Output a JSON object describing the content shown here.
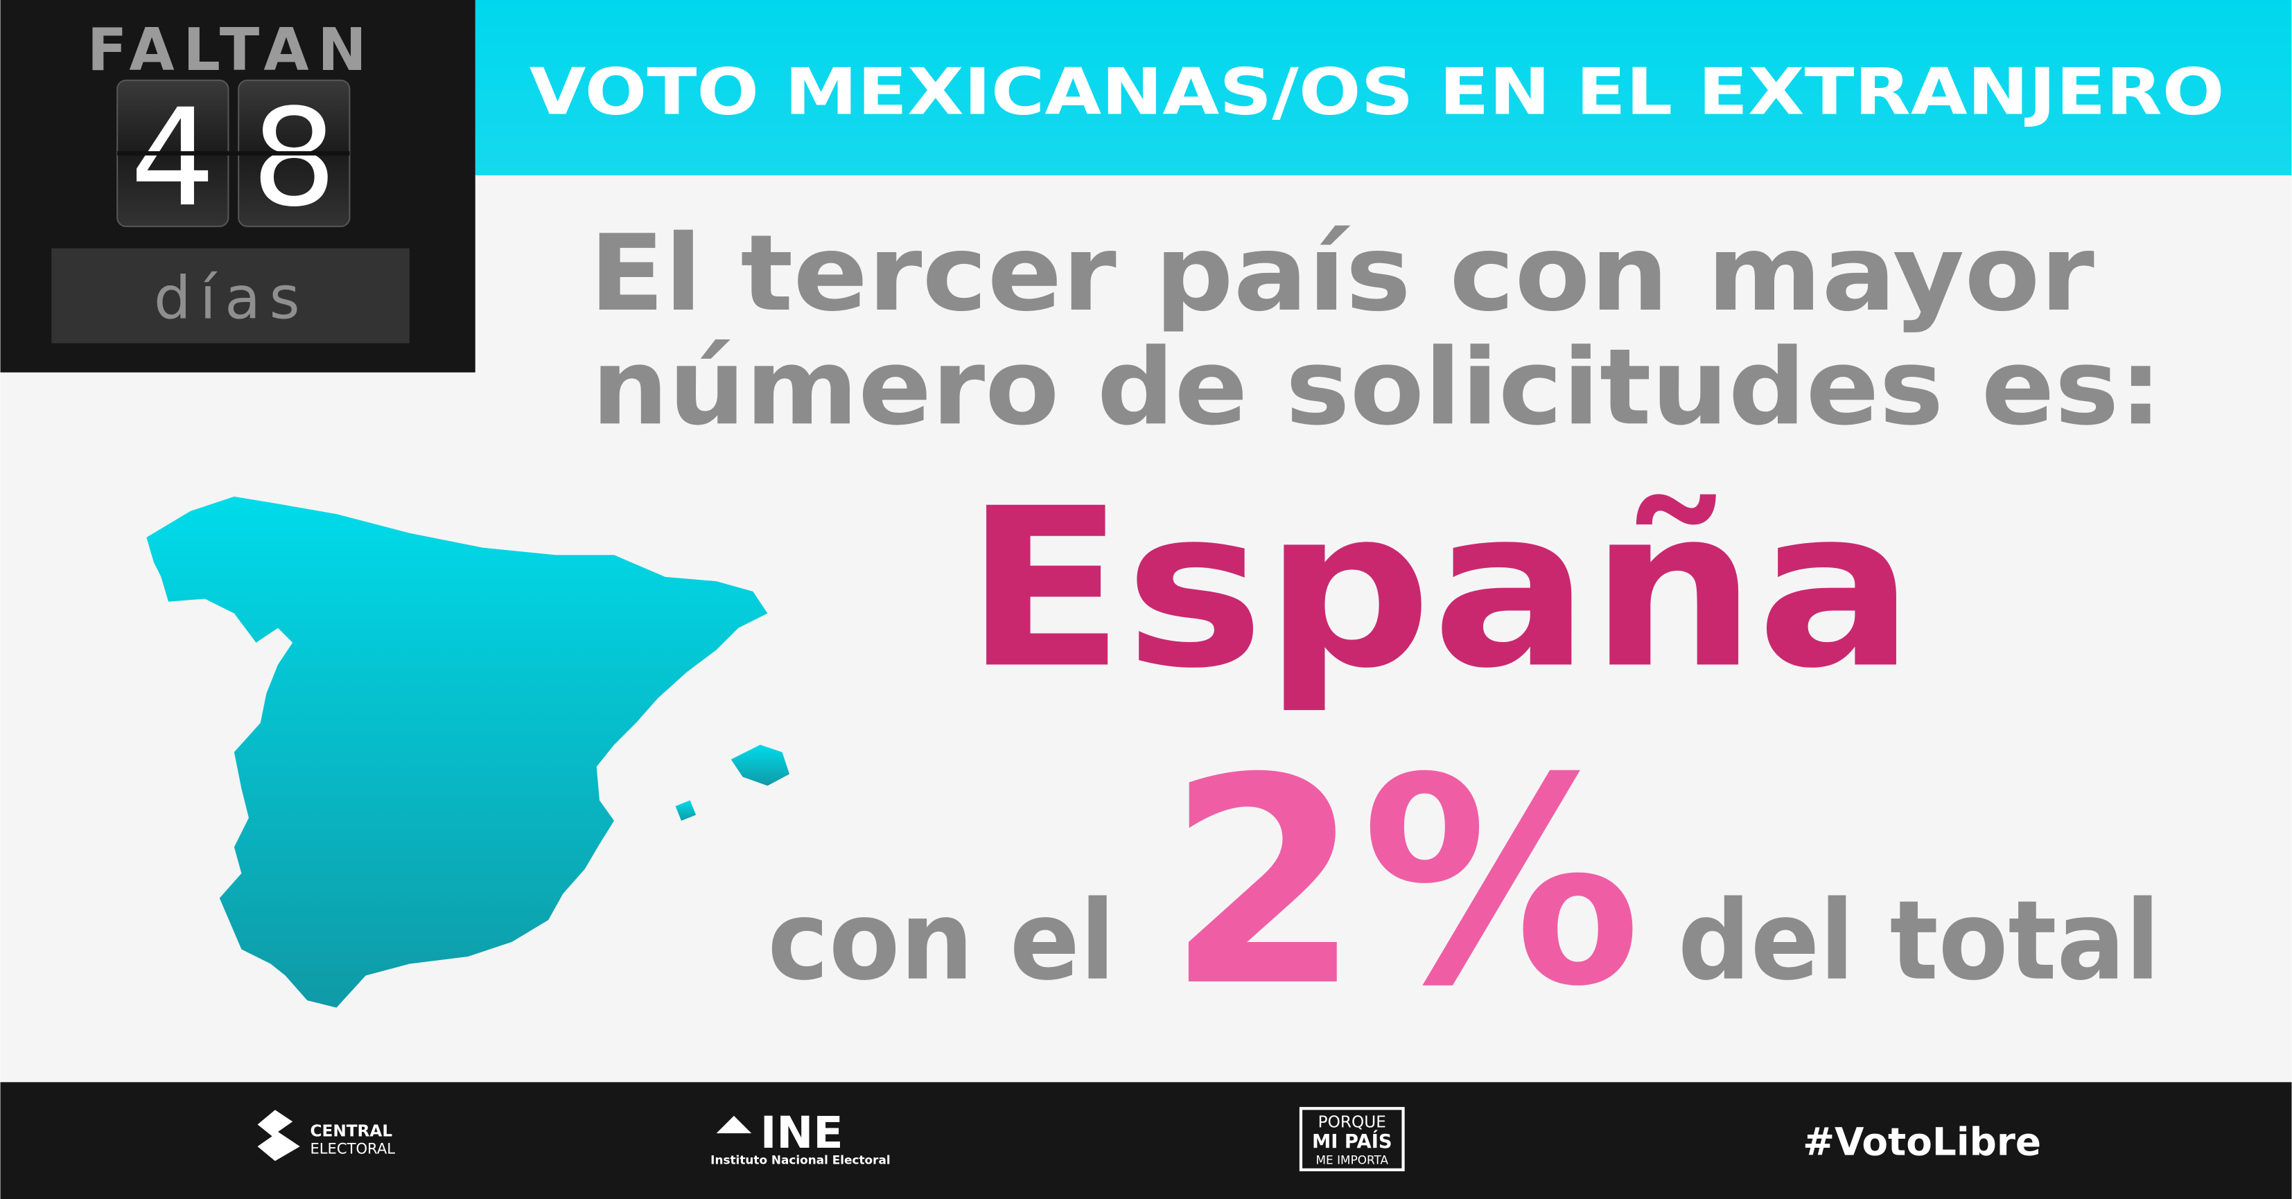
{
  "countdown": {
    "label": "FALTAN",
    "digits": [
      "4",
      "8"
    ],
    "unit": "días"
  },
  "header": {
    "title": "VOTO MEXICANAS/OS EN EL EXTRANJERO"
  },
  "headline": {
    "lines": [
      "El tercer país con mayor",
      "número de solicitudes es:"
    ]
  },
  "country": "España",
  "share": {
    "prefix": "con el",
    "value": "2%",
    "suffix": "del total"
  },
  "footer": {
    "central": [
      "CENTRAL",
      "ELECTORAL"
    ],
    "ine": {
      "name": "INE",
      "full": "Instituto Nacional Electoral"
    },
    "campaign": [
      "PORQUE",
      "MI PAÍS",
      "ME IMPORTA"
    ],
    "hashtag": "#VotoLibre"
  }
}
